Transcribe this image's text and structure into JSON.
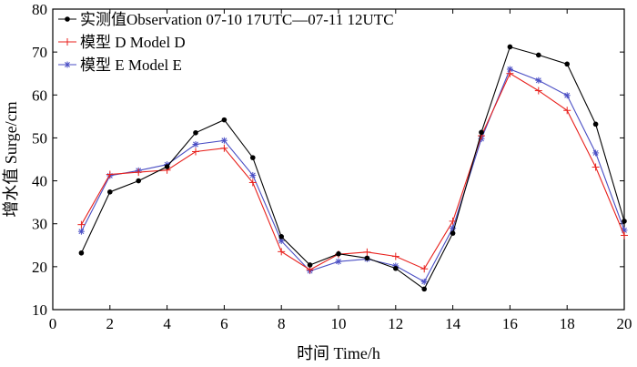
{
  "chart_data": {
    "type": "line",
    "xlabel": "时间 Time/h",
    "ylabel": "增水值 Surge/cm",
    "xlim": [
      0,
      20
    ],
    "ylim": [
      10,
      80
    ],
    "xticks": [
      0,
      2,
      4,
      6,
      8,
      10,
      12,
      14,
      16,
      18,
      20
    ],
    "yticks": [
      10,
      20,
      30,
      40,
      50,
      60,
      70,
      80
    ],
    "grid": false,
    "legend_position": "top-left",
    "x": [
      1,
      2,
      3,
      4,
      5,
      6,
      7,
      8,
      9,
      10,
      11,
      12,
      13,
      14,
      15,
      16,
      17,
      18,
      19,
      20
    ],
    "series": [
      {
        "name": "实测值Observation   07-10 17UTC—07-11 12UTC",
        "color": "#000000",
        "marker": "dot",
        "values": [
          23.2,
          37.4,
          40.0,
          43.3,
          51.2,
          54.2,
          45.4,
          27.0,
          20.4,
          23.0,
          22.0,
          19.6,
          14.8,
          27.8,
          51.3,
          71.2,
          69.3,
          67.2,
          53.2,
          30.6
        ]
      },
      {
        "name": "模型 D Model D",
        "color": "#e8201c",
        "marker": "plus",
        "values": [
          29.8,
          41.5,
          42.0,
          42.5,
          46.8,
          47.6,
          39.6,
          23.5,
          19.3,
          22.9,
          23.4,
          22.4,
          19.5,
          30.6,
          50.5,
          65.0,
          61.0,
          56.4,
          43.2,
          27.3
        ]
      },
      {
        "name": "模型 E Model E",
        "color": "#4a4ec4",
        "marker": "star",
        "values": [
          28.2,
          41.2,
          42.4,
          43.8,
          48.5,
          49.4,
          41.3,
          26.0,
          19.0,
          21.2,
          21.8,
          20.2,
          16.5,
          29.0,
          49.8,
          66.0,
          63.4,
          59.9,
          46.5,
          28.5
        ]
      }
    ]
  }
}
